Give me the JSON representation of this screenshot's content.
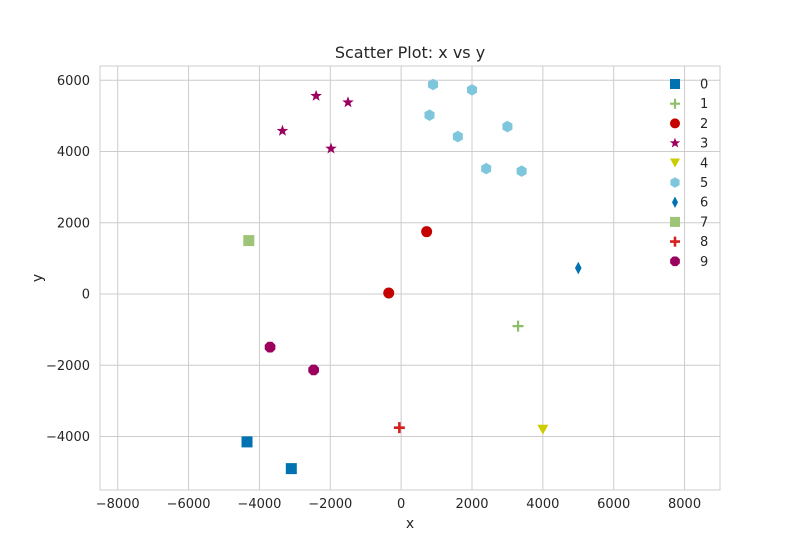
{
  "chart_data": {
    "type": "scatter",
    "title": "Scatter Plot: x vs y",
    "xlabel": "x",
    "ylabel": "y",
    "xlim": [
      -8500,
      9000
    ],
    "ylim": [
      -5500,
      6400
    ],
    "xticks": [
      -8000,
      -6000,
      -4000,
      -2000,
      0,
      2000,
      4000,
      6000,
      8000
    ],
    "yticks": [
      -4000,
      -2000,
      0,
      2000,
      4000,
      6000
    ],
    "grid": true,
    "legend_position": "top-right",
    "series": [
      {
        "name": "0",
        "marker": "square",
        "color": "#0072b2",
        "points": [
          [
            -4350,
            -4150
          ],
          [
            -3100,
            -4900
          ]
        ]
      },
      {
        "name": "1",
        "marker": "plus-thin",
        "color": "#8dbe6a",
        "points": [
          [
            3300,
            -900
          ]
        ]
      },
      {
        "name": "2",
        "marker": "circle",
        "color": "#c40000",
        "points": [
          [
            -350,
            30
          ],
          [
            720,
            1750
          ]
        ]
      },
      {
        "name": "3",
        "marker": "star",
        "color": "#9b005f",
        "points": [
          [
            -3350,
            4580
          ],
          [
            -2400,
            5560
          ],
          [
            -1500,
            5380
          ],
          [
            -1980,
            4080
          ]
        ]
      },
      {
        "name": "4",
        "marker": "triangle-down",
        "color": "#cccc00",
        "points": [
          [
            4000,
            -3800
          ]
        ]
      },
      {
        "name": "5",
        "marker": "hexagon",
        "color": "#7ec6dc",
        "points": [
          [
            900,
            5880
          ],
          [
            2000,
            5730
          ],
          [
            800,
            5020
          ],
          [
            1600,
            4420
          ],
          [
            3000,
            4700
          ],
          [
            2400,
            3520
          ],
          [
            3400,
            3450
          ]
        ]
      },
      {
        "name": "6",
        "marker": "thin-diamond",
        "color": "#0072b2",
        "points": [
          [
            5000,
            730
          ]
        ]
      },
      {
        "name": "7",
        "marker": "square",
        "color": "#9dc477",
        "points": [
          [
            -4300,
            1500
          ]
        ]
      },
      {
        "name": "8",
        "marker": "plus",
        "color": "#d62020",
        "points": [
          [
            -50,
            -3750
          ]
        ]
      },
      {
        "name": "9",
        "marker": "octagon",
        "color": "#9b005f",
        "points": [
          [
            -3700,
            -1490
          ],
          [
            -2470,
            -2130
          ]
        ]
      }
    ]
  }
}
